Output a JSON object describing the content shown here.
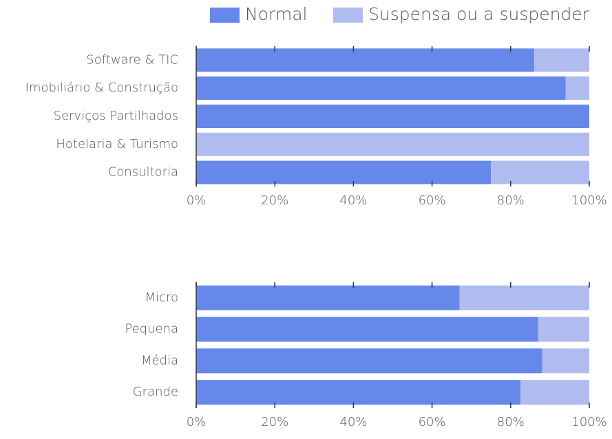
{
  "chart_data": [
    {
      "type": "bar",
      "orientation": "horizontal",
      "stacked": true,
      "categories": [
        "Software & TIC",
        "Imobiliário & Construção",
        "Serviços Partilhados",
        "Hotelaria & Turismo",
        "Consultoria"
      ],
      "series": [
        {
          "name": "Normal",
          "color": "#6688ea",
          "values": [
            86,
            94,
            100,
            0,
            75
          ]
        },
        {
          "name": "Suspensa ou a suspender",
          "color": "#b0bcf0",
          "values": [
            14,
            6,
            0,
            100,
            25
          ]
        }
      ],
      "xlim": [
        0,
        100
      ],
      "xticks": [
        {
          "value": 0,
          "label": "0%"
        },
        {
          "value": 20,
          "label": "20%"
        },
        {
          "value": 40,
          "label": "40%"
        },
        {
          "value": 60,
          "label": "60%"
        },
        {
          "value": 80,
          "label": "80%"
        },
        {
          "value": 100,
          "label": "100%"
        }
      ]
    },
    {
      "type": "bar",
      "orientation": "horizontal",
      "stacked": true,
      "categories": [
        "Micro",
        "Pequena",
        "Média",
        "Grande"
      ],
      "series": [
        {
          "color": "#6688ea",
          "values": [
            67,
            87,
            88,
            82.5
          ]
        },
        {
          "color": "#b0bcf0",
          "values": [
            33,
            13,
            12,
            17.5
          ]
        }
      ],
      "xlim": [
        0,
        100
      ],
      "xticks": [
        {
          "value": 0,
          "label": "0%"
        },
        {
          "value": 20,
          "label": "20%"
        },
        {
          "value": 40,
          "label": "40%"
        },
        {
          "value": 60,
          "label": "60%"
        },
        {
          "value": 80,
          "label": "80%"
        },
        {
          "value": 100,
          "label": "100%"
        }
      ]
    }
  ]
}
